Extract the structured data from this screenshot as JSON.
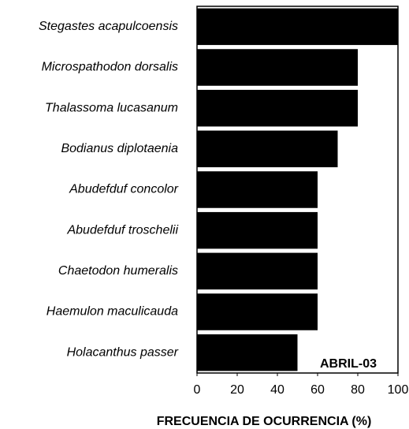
{
  "chart_data": {
    "type": "bar",
    "orientation": "horizontal",
    "categories": [
      "Stegastes acapulcoensis",
      "Microspathodon dorsalis",
      "Thalassoma lucasanum",
      "Bodianus diplotaenia",
      "Abudefduf concolor",
      "Abudefduf troschelii",
      "Chaetodon humeralis",
      "Haemulon maculicauda",
      "Holacanthus passer"
    ],
    "values": [
      100,
      80,
      80,
      70,
      60,
      60,
      60,
      60,
      50
    ],
    "color": "#000000",
    "xlim": [
      0,
      100
    ],
    "xticks": [
      0,
      20,
      40,
      60,
      80,
      100
    ],
    "xlabel": "FRECUENCIA DE OCURRENCIA (%)",
    "annotation": "ABRIL-03"
  }
}
